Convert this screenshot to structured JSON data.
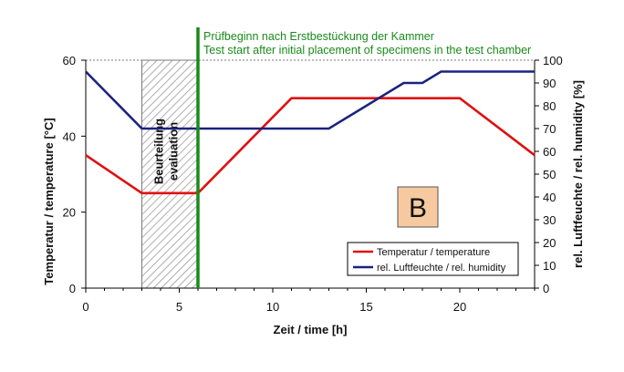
{
  "chart_data": {
    "type": "line",
    "xlabel": "Zeit / time [h]",
    "ylabel": "Temperatur / temperature [°C]",
    "y2label": "rel. Luftfeuchte / rel. humidity [%]",
    "xlim": [
      0,
      24
    ],
    "ylim": [
      0,
      60
    ],
    "y2lim": [
      0,
      100
    ],
    "x_ticks": [
      0,
      5,
      10,
      15,
      20
    ],
    "y_ticks": [
      0,
      20,
      40,
      60
    ],
    "y2_ticks": [
      0,
      10,
      20,
      30,
      40,
      50,
      60,
      70,
      80,
      90,
      100
    ],
    "grid": false,
    "legend_position": "bottom-right",
    "series": [
      {
        "name": "Temperatur / temperature",
        "axis": "left",
        "color": "#e01010",
        "x": [
          0,
          3,
          6,
          11,
          20,
          24
        ],
        "y": [
          35,
          25,
          25,
          50,
          50,
          35
        ]
      },
      {
        "name": "rel. Luftfeuchte / rel. humidity",
        "axis": "right",
        "color": "#1a237e",
        "x": [
          0,
          3,
          6,
          13,
          17,
          18,
          19,
          24
        ],
        "y": [
          95,
          70,
          70,
          70,
          90,
          90,
          95,
          95
        ]
      }
    ],
    "annotations": {
      "test_start_line": {
        "x": 6,
        "color": "#1a8a1a",
        "text_de": "Prüfbeginn nach Erstbestückung der Kammer",
        "text_en": "Test start after initial placement of specimens in the test chamber"
      },
      "evaluation_zone": {
        "x_start": 3,
        "x_end": 6,
        "label_de": "Beurteilung",
        "label_en": "evaluation"
      },
      "panel_label": {
        "text": "B",
        "fill": "#f7c9a0"
      }
    }
  }
}
